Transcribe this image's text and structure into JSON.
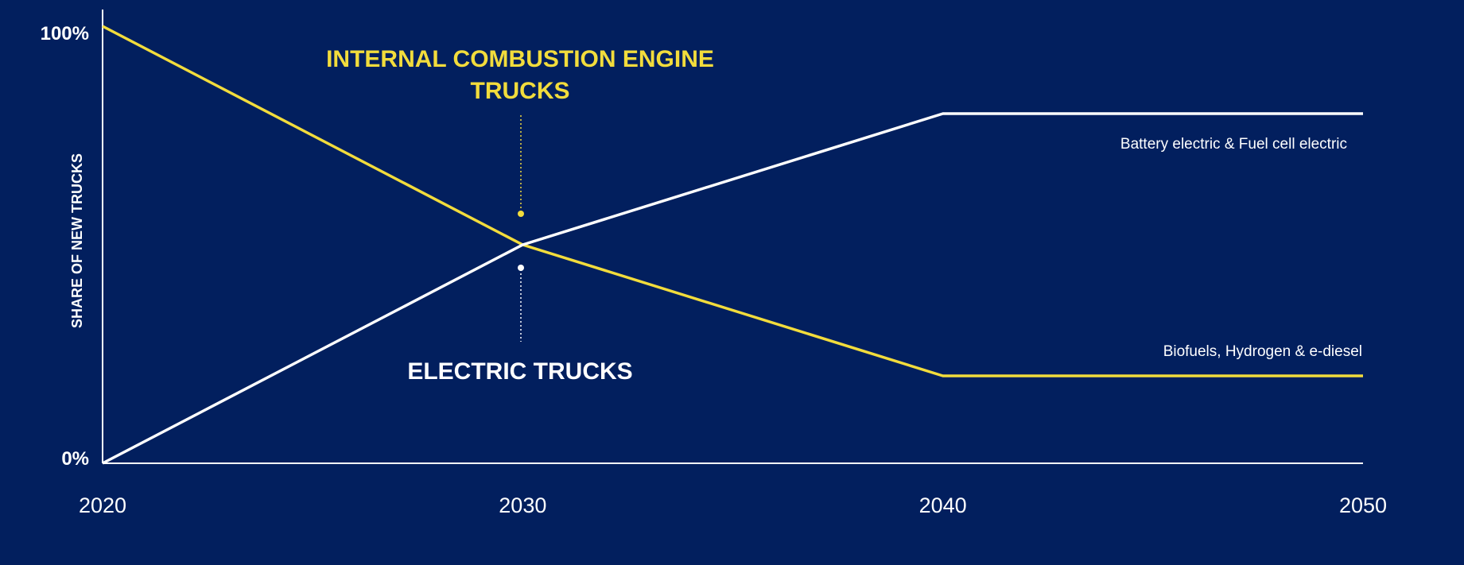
{
  "chart_data": {
    "type": "line",
    "title": "",
    "xlabel": "",
    "ylabel": "SHARE OF NEW TRUCKS",
    "x": [
      2020,
      2030,
      2040,
      2050
    ],
    "xlim": [
      2020,
      2050
    ],
    "ylim": [
      0,
      100
    ],
    "x_tick_labels": [
      "2020",
      "2030",
      "2040",
      "2050"
    ],
    "y_tick_labels": [
      "0%",
      "100%"
    ],
    "grid": false,
    "series": [
      {
        "name": "INTERNAL COMBUSTION ENGINE TRUCKS",
        "color": "#f2dc3c",
        "values": [
          100,
          50,
          20,
          20
        ],
        "end_note": "Biofuels, Hydrogen &  e-diesel"
      },
      {
        "name": "ELECTRIC TRUCKS",
        "color": "#ffffff",
        "values": [
          0,
          50,
          80,
          80
        ],
        "end_note": "Battery electric &  Fuel cell electric"
      }
    ],
    "annotations": {
      "ice_line1": "INTERNAL COMBUSTION ENGINE",
      "ice_line2": "TRUCKS",
      "electric": "ELECTRIC TRUCKS",
      "ice_end": "Biofuels, Hydrogen &  e-diesel",
      "electric_end": "Battery electric &  Fuel cell electric"
    }
  },
  "colors": {
    "background": "#021f5e",
    "ice": "#f2dc3c",
    "electric": "#ffffff",
    "axis": "#ffffff"
  }
}
